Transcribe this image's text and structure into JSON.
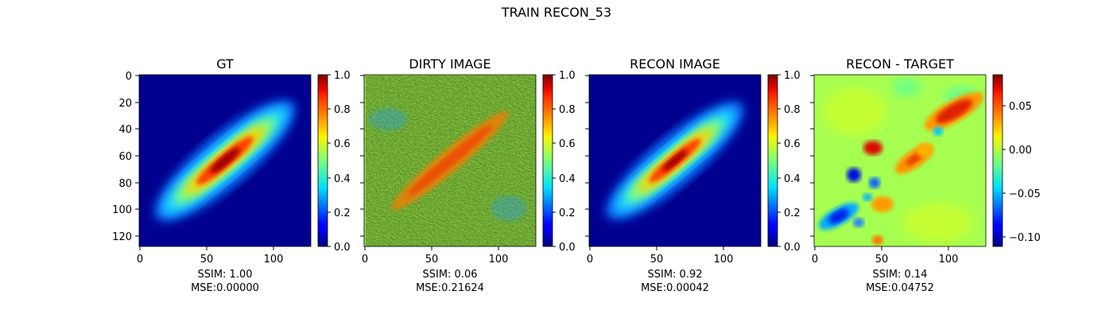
{
  "figure": {
    "title": "TRAIN RECON_53"
  },
  "chart_data": [
    {
      "type": "heatmap",
      "title": "GT",
      "caption": [
        "SSIM: 1.00",
        "MSE:0.00000"
      ],
      "colormap": "jet",
      "image_size": [
        128,
        128
      ],
      "x_ticks": [
        "0",
        "50",
        "100"
      ],
      "y_ticks": [
        "0",
        "20",
        "40",
        "60",
        "80",
        "100",
        "120"
      ],
      "colorbar": {
        "min": 0.0,
        "max": 1.0,
        "ticks": [
          "0.0",
          "0.2",
          "0.4",
          "0.6",
          "0.8",
          "1.0"
        ]
      },
      "content": "smooth elongated blob along the diagonal, peak near (65, 65)"
    },
    {
      "type": "heatmap",
      "title": "DIRTY IMAGE",
      "caption": [
        "SSIM: 0.06",
        "MSE:0.21624"
      ],
      "colormap": "jet",
      "image_size": [
        128,
        128
      ],
      "x_ticks": [
        "0",
        "50",
        "100"
      ],
      "colorbar": {
        "min": 0.0,
        "max": 1.0,
        "ticks": [
          "0.0",
          "0.2",
          "0.4",
          "0.6",
          "0.8",
          "1.0"
        ]
      },
      "content": "noisy background around 0.5 with brighter diagonal streak"
    },
    {
      "type": "heatmap",
      "title": "RECON IMAGE",
      "caption": [
        "SSIM: 0.92",
        "MSE:0.00042"
      ],
      "colormap": "jet",
      "image_size": [
        128,
        128
      ],
      "x_ticks": [
        "0",
        "50",
        "100"
      ],
      "colorbar": {
        "min": 0.0,
        "max": 1.0,
        "ticks": [
          "0.0",
          "0.2",
          "0.4",
          "0.6",
          "0.8",
          "1.0"
        ]
      },
      "content": "reconstructed diagonal blob similar to GT"
    },
    {
      "type": "heatmap",
      "title": "RECON - TARGET",
      "caption": [
        "SSIM: 0.14",
        "MSE:0.04752"
      ],
      "colormap": "jet",
      "image_size": [
        128,
        128
      ],
      "x_ticks": [
        "0",
        "50",
        "100"
      ],
      "colorbar": {
        "min": -0.11,
        "max": 0.085,
        "ticks": [
          "0.05",
          "0.00",
          "−0.05",
          "−0.10"
        ],
        "tick_values": [
          0.05,
          0.0,
          -0.05,
          -0.1
        ]
      },
      "content": "residual map, mostly near 0 with positive blobs upper-right and negative blobs lower-left"
    }
  ]
}
